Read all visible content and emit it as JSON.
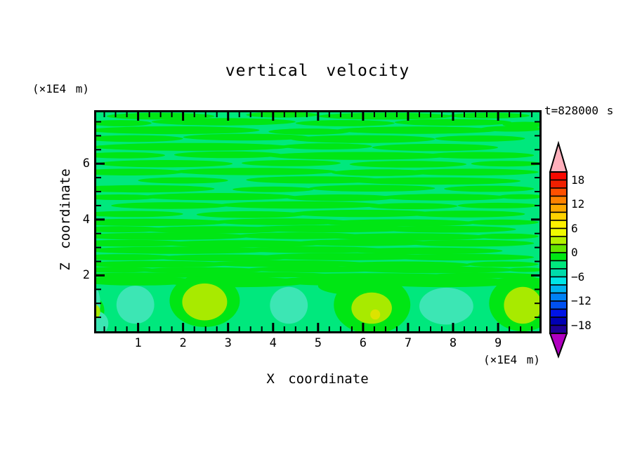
{
  "chart_data": {
    "type": "filled_contour",
    "title": "vertical velocity",
    "annotation": "t=828000 s",
    "xlabel": "X coordinate",
    "zlabel": "Z coordinate",
    "x_units_label": "(×1E4 m)",
    "z_units_label": "(×1E4 m)",
    "x_range": [
      0.07,
      9.92
    ],
    "z_range": [
      0,
      7.84
    ],
    "x_axis": {
      "majors": [
        1,
        2,
        3,
        4,
        5,
        6,
        7,
        8,
        9
      ],
      "minor_step": 0.25
    },
    "z_axis": {
      "majors": [
        2,
        4,
        6
      ],
      "minor_step": 0.5
    },
    "grid": false,
    "contour_interval": 2,
    "colorbar": {
      "position": "right",
      "value_top": 20,
      "value_bottom": -20,
      "tick_values": [
        18,
        12,
        6,
        0,
        -6,
        -12,
        -18
      ],
      "tick_labels": [
        "18",
        "12",
        "6",
        "0",
        "−6",
        "−12",
        "−18"
      ],
      "segment_colors_top_to_bottom": [
        "#f80800",
        "#f02000",
        "#ff5000",
        "#ff8200",
        "#ffaa00",
        "#ffd200",
        "#fff000",
        "#f0fa00",
        "#b4f000",
        "#64e600",
        "#00e614",
        "#00e87d",
        "#00dcaa",
        "#00e6e6",
        "#00b4f0",
        "#0082f5",
        "#0050f0",
        "#0014e6",
        "#0000b4",
        "#1e0096"
      ],
      "over_arrow_color": "#ffb0bc",
      "under_arrow_color": "#b000c0"
    },
    "field": {
      "background_color": "#00e87d",
      "streak_color": "#00e614",
      "downdraft_color": "#3ce6b4",
      "updraft_color": "#a8ea00",
      "updraft_core_color": "#dde300",
      "streaks": [
        [
          1.5,
          7.7,
          1.2,
          0.12
        ],
        [
          4.2,
          7.75,
          0.8,
          0.1
        ],
        [
          6.5,
          7.7,
          1.5,
          0.12
        ],
        [
          8.8,
          7.72,
          0.9,
          0.1
        ],
        [
          0.6,
          7.45,
          0.7,
          0.11
        ],
        [
          2.9,
          7.5,
          1.6,
          0.13
        ],
        [
          5.6,
          7.45,
          1.1,
          0.11
        ],
        [
          8.0,
          7.48,
          1.3,
          0.12
        ],
        [
          9.6,
          7.4,
          0.5,
          0.1
        ],
        [
          1.8,
          7.2,
          1.9,
          0.14
        ],
        [
          4.8,
          7.15,
          0.9,
          0.11
        ],
        [
          7.2,
          7.2,
          1.8,
          0.13
        ],
        [
          9.3,
          7.25,
          0.7,
          0.1
        ],
        [
          0.9,
          6.9,
          1.1,
          0.12
        ],
        [
          3.4,
          6.95,
          1.4,
          0.12
        ],
        [
          6.0,
          6.88,
          1.6,
          0.14
        ],
        [
          8.6,
          6.9,
          1.0,
          0.11
        ],
        [
          2.2,
          6.6,
          2.2,
          0.14
        ],
        [
          5.2,
          6.62,
          1.0,
          0.11
        ],
        [
          7.6,
          6.58,
          1.4,
          0.13
        ],
        [
          0.7,
          6.3,
          0.9,
          0.11
        ],
        [
          3.0,
          6.32,
          1.2,
          0.12
        ],
        [
          5.9,
          6.28,
          2.0,
          0.14
        ],
        [
          8.6,
          6.3,
          1.2,
          0.12
        ],
        [
          1.6,
          6.0,
          1.5,
          0.13
        ],
        [
          4.4,
          6.02,
          1.1,
          0.11
        ],
        [
          7.0,
          5.98,
          1.3,
          0.12
        ],
        [
          9.2,
          6.0,
          0.8,
          0.1
        ],
        [
          0.8,
          5.7,
          1.2,
          0.12
        ],
        [
          3.6,
          5.72,
          1.8,
          0.13
        ],
        [
          6.4,
          5.68,
          1.1,
          0.12
        ],
        [
          8.4,
          5.7,
          1.5,
          0.12
        ],
        [
          2.0,
          5.4,
          1.0,
          0.11
        ],
        [
          4.9,
          5.42,
          1.5,
          0.13
        ],
        [
          7.6,
          5.38,
          1.9,
          0.13
        ],
        [
          1.1,
          5.1,
          1.6,
          0.13
        ],
        [
          4.0,
          5.08,
          0.9,
          0.1
        ],
        [
          6.2,
          5.12,
          1.4,
          0.12
        ],
        [
          8.8,
          5.1,
          1.0,
          0.11
        ],
        [
          0.6,
          4.8,
          0.8,
          0.1
        ],
        [
          2.8,
          4.82,
          1.7,
          0.13
        ],
        [
          5.5,
          4.78,
          1.2,
          0.12
        ],
        [
          7.8,
          4.8,
          1.4,
          0.12
        ],
        [
          9.5,
          4.82,
          0.5,
          0.09
        ],
        [
          1.7,
          4.5,
          1.3,
          0.12
        ],
        [
          4.6,
          4.52,
          1.8,
          0.13
        ],
        [
          7.1,
          4.48,
          1.0,
          0.11
        ],
        [
          9.0,
          4.5,
          0.9,
          0.1
        ],
        [
          0.9,
          4.2,
          1.1,
          0.11
        ],
        [
          3.5,
          4.18,
          1.2,
          0.12
        ],
        [
          6.0,
          4.22,
          1.6,
          0.13
        ],
        [
          8.3,
          4.2,
          1.3,
          0.12
        ],
        [
          1.2,
          3.9,
          1.8,
          0.13
        ],
        [
          4.2,
          3.92,
          1.5,
          0.12
        ],
        [
          6.8,
          3.88,
          1.7,
          0.13
        ],
        [
          9.1,
          3.9,
          0.8,
          0.1
        ],
        [
          0.6,
          3.65,
          1.0,
          0.11
        ],
        [
          2.7,
          3.63,
          1.6,
          0.13
        ],
        [
          5.3,
          3.67,
          1.9,
          0.13
        ],
        [
          7.9,
          3.65,
          1.5,
          0.12
        ],
        [
          1.6,
          3.4,
          1.9,
          0.13
        ],
        [
          4.6,
          3.42,
          1.4,
          0.12
        ],
        [
          7.0,
          3.38,
          1.8,
          0.13
        ],
        [
          9.2,
          3.4,
          0.7,
          0.1
        ],
        [
          0.8,
          3.15,
          1.3,
          0.12
        ],
        [
          3.3,
          3.13,
          1.8,
          0.13
        ],
        [
          6.0,
          3.17,
          1.5,
          0.12
        ],
        [
          8.4,
          3.15,
          1.4,
          0.12
        ],
        [
          1.9,
          2.9,
          2.1,
          0.13
        ],
        [
          4.9,
          2.92,
          1.6,
          0.12
        ],
        [
          7.4,
          2.88,
          1.7,
          0.12
        ],
        [
          0.7,
          2.65,
          1.1,
          0.11
        ],
        [
          2.9,
          2.63,
          1.5,
          0.12
        ],
        [
          5.6,
          2.67,
          1.9,
          0.13
        ],
        [
          8.2,
          2.65,
          1.6,
          0.12
        ],
        [
          1.4,
          2.4,
          1.7,
          0.12
        ],
        [
          4.3,
          2.42,
          1.8,
          0.12
        ],
        [
          6.9,
          2.38,
          1.5,
          0.12
        ],
        [
          9.1,
          2.4,
          0.8,
          0.1
        ],
        [
          0.5,
          2.2,
          0.9,
          0.1
        ],
        [
          2.4,
          2.18,
          1.4,
          0.11
        ],
        [
          5.0,
          2.22,
          1.6,
          0.11
        ],
        [
          7.6,
          2.2,
          1.8,
          0.12
        ],
        [
          9.6,
          2.2,
          0.4,
          0.08
        ],
        [
          1.1,
          2.0,
          1.5,
          0.1
        ],
        [
          3.6,
          2.02,
          1.7,
          0.1
        ],
        [
          6.2,
          1.98,
          1.9,
          0.1
        ],
        [
          8.7,
          2.0,
          1.2,
          0.1
        ],
        [
          1.0,
          1.8,
          1.3,
          0.16
        ],
        [
          3.2,
          1.76,
          1.6,
          0.18
        ],
        [
          5.5,
          1.8,
          1.5,
          0.16
        ],
        [
          7.8,
          1.76,
          1.6,
          0.18
        ],
        [
          9.5,
          1.8,
          0.6,
          0.14
        ]
      ],
      "updraft_halos": [
        [
          2.48,
          1.1,
          0.78,
          0.95
        ],
        [
          6.2,
          0.95,
          0.85,
          1.05
        ],
        [
          9.55,
          1.0,
          0.75,
          1.0
        ],
        [
          5.9,
          1.62,
          0.9,
          0.33
        ],
        [
          0.03,
          0.75,
          0.22,
          0.45
        ]
      ],
      "downdrafts": [
        [
          0.94,
          0.95,
          0.42,
          0.68
        ],
        [
          4.35,
          0.93,
          0.42,
          0.66
        ],
        [
          7.85,
          0.9,
          0.6,
          0.66
        ],
        [
          0.06,
          0.28,
          0.28,
          0.45
        ],
        [
          0.04,
          1.0,
          0.12,
          0.55
        ]
      ],
      "updrafts": [
        [
          2.48,
          1.05,
          0.5,
          0.66
        ],
        [
          6.19,
          0.83,
          0.45,
          0.56
        ],
        [
          9.55,
          0.93,
          0.42,
          0.66
        ],
        [
          0.03,
          0.7,
          0.13,
          0.26
        ]
      ],
      "updraft_cores": [
        [
          6.27,
          0.6,
          0.11,
          0.18
        ]
      ]
    }
  }
}
